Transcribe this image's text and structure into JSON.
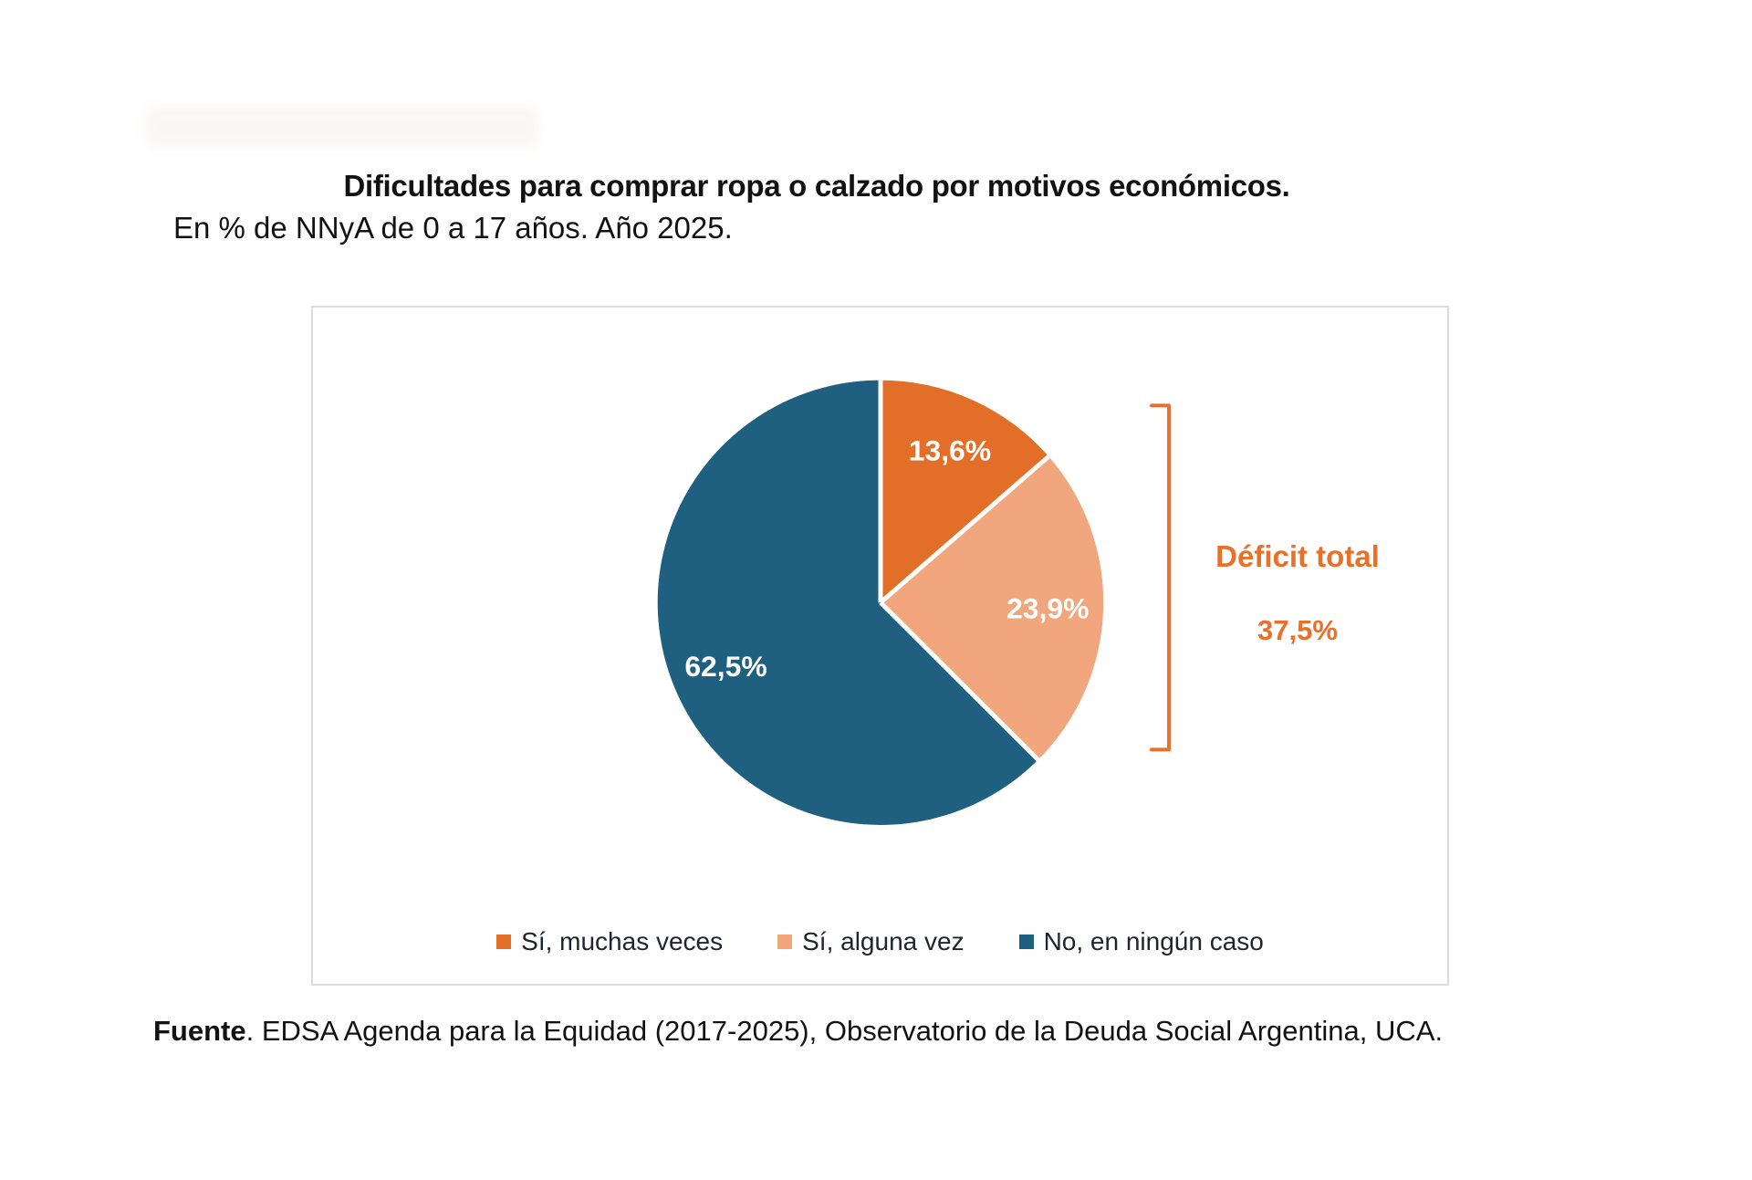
{
  "chart_data": {
    "type": "pie",
    "title": "Dificultades para comprar ropa o calzado por motivos económicos.",
    "subtitle": "En % de NNyA de 0 a 17 años. Año 2025.",
    "direction": "clockwise",
    "start_angle_deg": 0,
    "legend_position": "bottom",
    "slices": [
      {
        "label": "Sí, muchas veces",
        "value": 13.6,
        "display": "13,6%",
        "color": "#E26E27"
      },
      {
        "label": "Sí, alguna vez",
        "value": 23.9,
        "display": "23,9%",
        "color": "#F1A67E"
      },
      {
        "label": "No, en ningún caso",
        "value": 62.5,
        "display": "62,5%",
        "color": "#1F6080"
      }
    ],
    "annotation": {
      "label": "Déficit total",
      "value": 37.5,
      "value_display": "37,5%",
      "color": "#E8702B",
      "groups": [
        "Sí, muchas veces",
        "Sí, alguna vez"
      ]
    }
  },
  "source": {
    "label": "Fuente",
    "text": ". EDSA Agenda para la Equidad (2017-2025), Observatorio de la Deuda Social Argentina, UCA."
  }
}
